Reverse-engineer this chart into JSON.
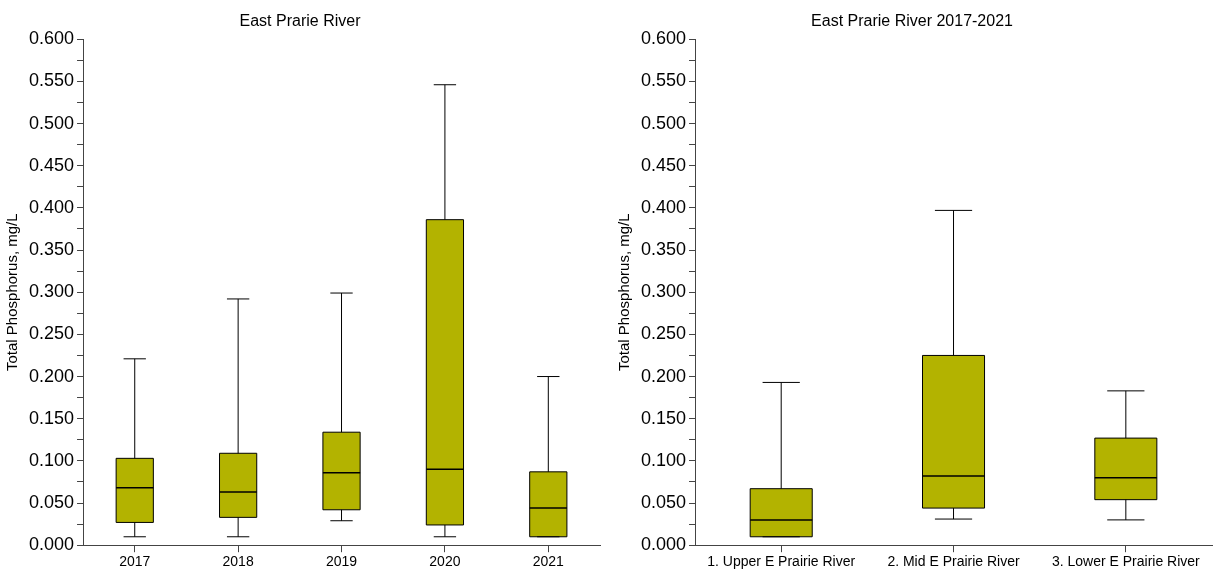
{
  "chart_data": [
    {
      "type": "box",
      "title": "East Prarie River",
      "ylabel": "Total Phosphorus, mg/L",
      "categories": [
        "2017",
        "2018",
        "2019",
        "2020",
        "2021"
      ],
      "series": [
        {
          "color": "#b3b300",
          "boxes": [
            {
              "low": 0.01,
              "q1": 0.027,
              "median": 0.068,
              "q3": 0.103,
              "high": 0.221
            },
            {
              "low": 0.01,
              "q1": 0.033,
              "median": 0.063,
              "q3": 0.109,
              "high": 0.292
            },
            {
              "low": 0.029,
              "q1": 0.042,
              "median": 0.086,
              "q3": 0.134,
              "high": 0.299
            },
            {
              "low": 0.01,
              "q1": 0.024,
              "median": 0.09,
              "q3": 0.386,
              "high": 0.546
            },
            {
              "low": 0.01,
              "q1": 0.01,
              "median": 0.044,
              "q3": 0.087,
              "high": 0.2
            }
          ]
        }
      ],
      "ylim": [
        0,
        0.6
      ],
      "yticks": [
        {
          "value": 0,
          "label": "0.000"
        },
        {
          "value": 0.025,
          "label": null
        },
        {
          "value": 0.05,
          "label": "0.050"
        },
        {
          "value": 0.075,
          "label": null
        },
        {
          "value": 0.1,
          "label": "0.100"
        },
        {
          "value": 0.125,
          "label": null
        },
        {
          "value": 0.15,
          "label": "0.150"
        },
        {
          "value": 0.175,
          "label": null
        },
        {
          "value": 0.2,
          "label": "0.200"
        },
        {
          "value": 0.225,
          "label": null
        },
        {
          "value": 0.25,
          "label": "0.250"
        },
        {
          "value": 0.275,
          "label": null
        },
        {
          "value": 0.3,
          "label": "0.300"
        },
        {
          "value": 0.325,
          "label": null
        },
        {
          "value": 0.35,
          "label": "0.350"
        },
        {
          "value": 0.375,
          "label": null
        },
        {
          "value": 0.4,
          "label": "0.400"
        },
        {
          "value": 0.425,
          "label": null
        },
        {
          "value": 0.45,
          "label": "0.450"
        },
        {
          "value": 0.475,
          "label": null
        },
        {
          "value": 0.5,
          "label": "0.500"
        },
        {
          "value": 0.525,
          "label": null
        },
        {
          "value": 0.55,
          "label": "0.550"
        },
        {
          "value": 0.575,
          "label": null
        },
        {
          "value": 0.6,
          "label": "0.600"
        }
      ],
      "grid": false,
      "legend": false
    },
    {
      "type": "box",
      "title": "East Prarie River 2017-2021",
      "ylabel": "Total Phosphorus, mg/L",
      "categories": [
        "1. Upper E Prairie River",
        "2. Mid E Prairie River",
        "3. Lower E Prairie River"
      ],
      "series": [
        {
          "color": "#b3b300",
          "boxes": [
            {
              "low": 0.01,
              "q1": 0.01,
              "median": 0.03,
              "q3": 0.067,
              "high": 0.193
            },
            {
              "low": 0.031,
              "q1": 0.044,
              "median": 0.082,
              "q3": 0.225,
              "high": 0.397
            },
            {
              "low": 0.03,
              "q1": 0.054,
              "median": 0.08,
              "q3": 0.127,
              "high": 0.183
            }
          ]
        }
      ],
      "ylim": [
        0,
        0.6
      ],
      "yticks": [
        {
          "value": 0,
          "label": "0.000"
        },
        {
          "value": 0.025,
          "label": null
        },
        {
          "value": 0.05,
          "label": "0.050"
        },
        {
          "value": 0.075,
          "label": null
        },
        {
          "value": 0.1,
          "label": "0.100"
        },
        {
          "value": 0.125,
          "label": null
        },
        {
          "value": 0.15,
          "label": "0.150"
        },
        {
          "value": 0.175,
          "label": null
        },
        {
          "value": 0.2,
          "label": "0.200"
        },
        {
          "value": 0.225,
          "label": null
        },
        {
          "value": 0.25,
          "label": "0.250"
        },
        {
          "value": 0.275,
          "label": null
        },
        {
          "value": 0.3,
          "label": "0.300"
        },
        {
          "value": 0.325,
          "label": null
        },
        {
          "value": 0.35,
          "label": "0.350"
        },
        {
          "value": 0.375,
          "label": null
        },
        {
          "value": 0.4,
          "label": "0.400"
        },
        {
          "value": 0.425,
          "label": null
        },
        {
          "value": 0.45,
          "label": "0.450"
        },
        {
          "value": 0.475,
          "label": null
        },
        {
          "value": 0.5,
          "label": "0.500"
        },
        {
          "value": 0.525,
          "label": null
        },
        {
          "value": 0.55,
          "label": "0.550"
        },
        {
          "value": 0.575,
          "label": null
        },
        {
          "value": 0.6,
          "label": "0.600"
        }
      ],
      "grid": false,
      "legend": false
    }
  ]
}
